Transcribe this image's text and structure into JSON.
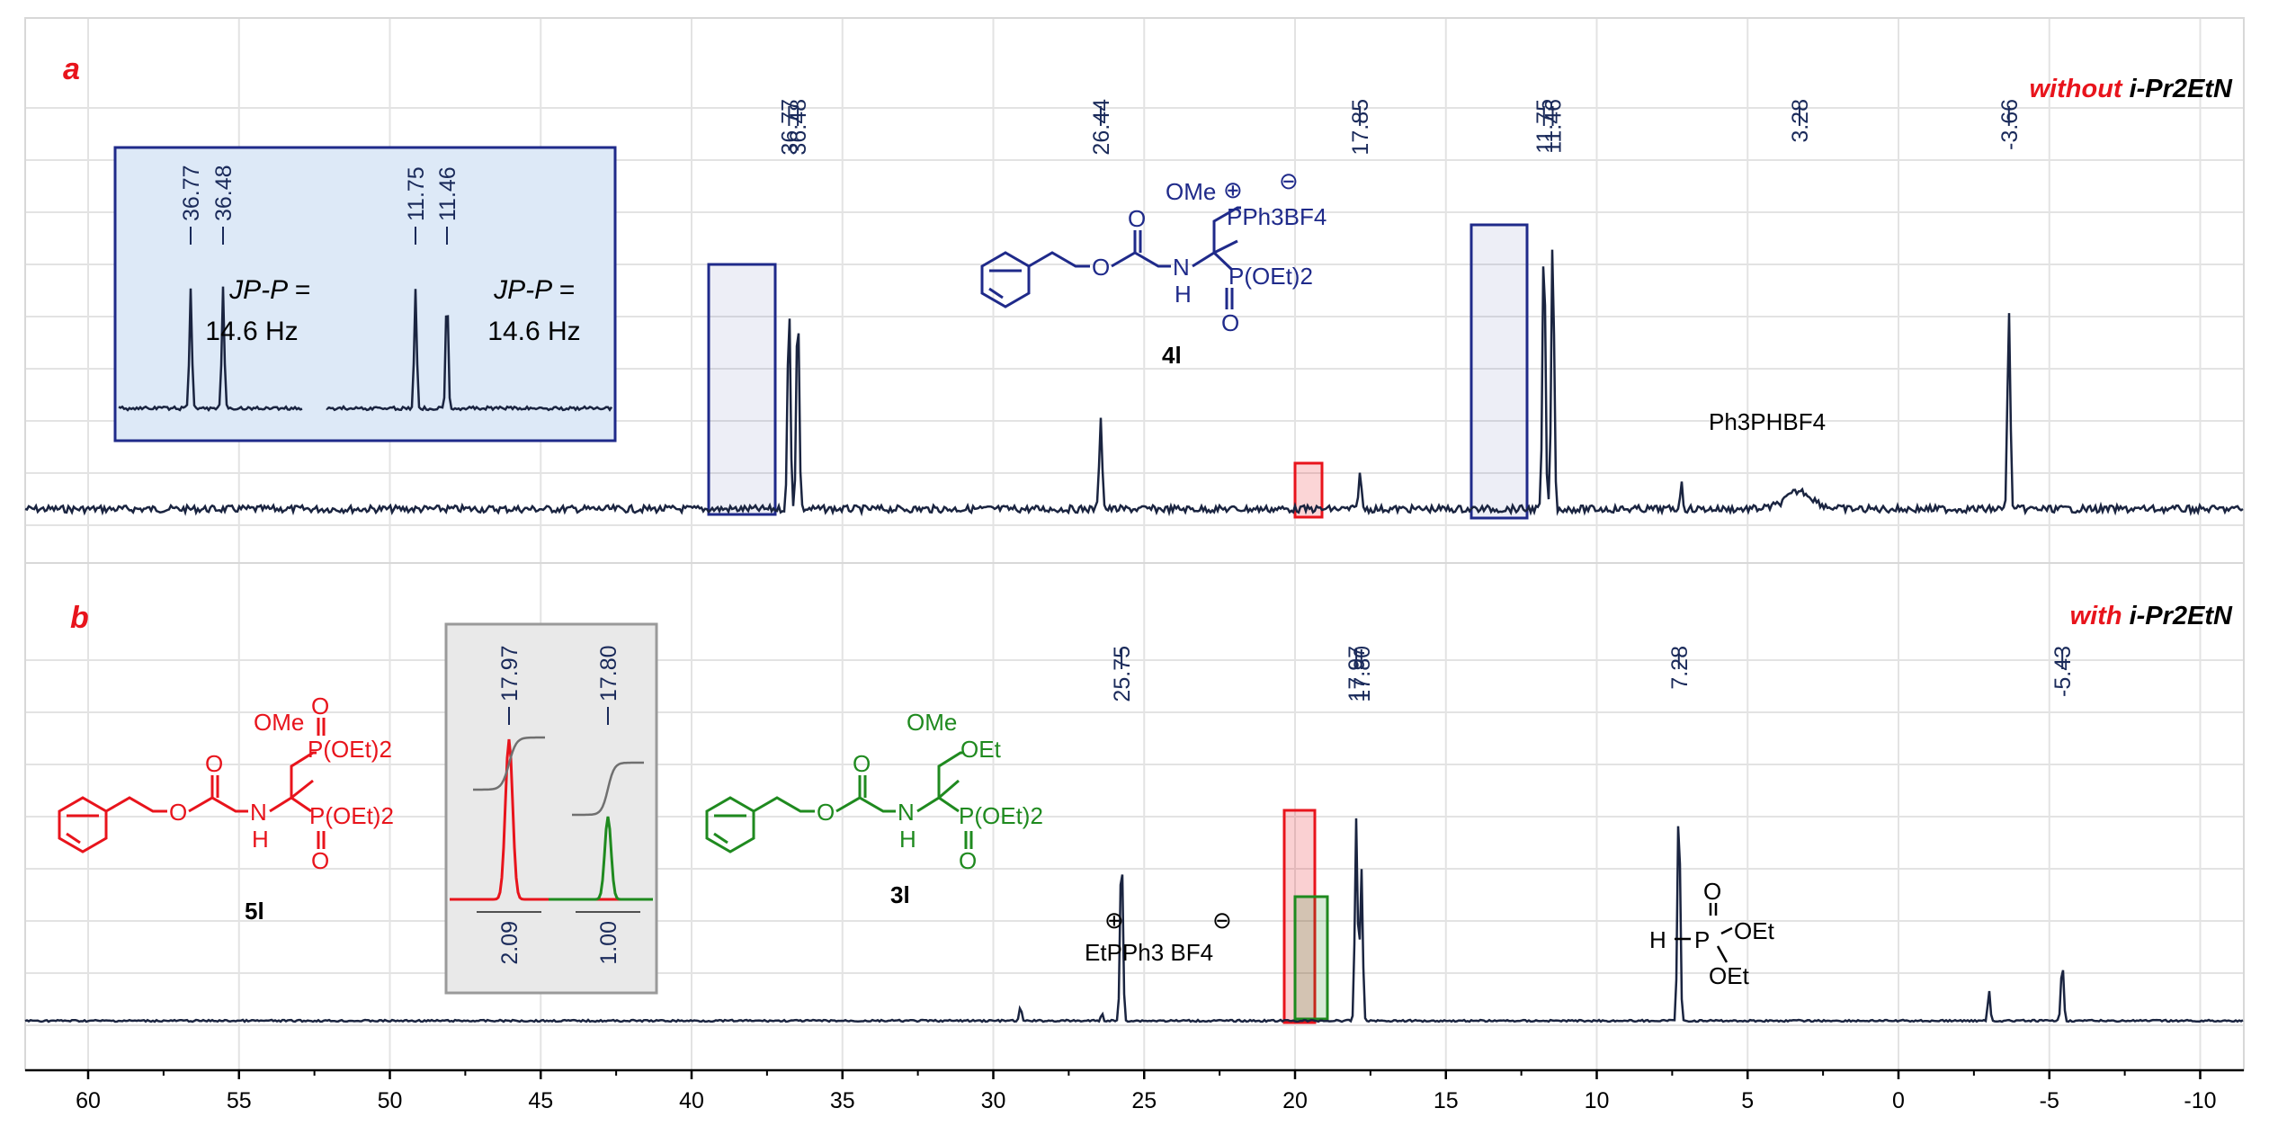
{
  "colors": {
    "spectrum": "#1a2440",
    "highlight_blue": "#1f2a8a",
    "highlight_red": "#e8141c",
    "highlight_green": "#1f8a1f",
    "inset_bg": "#dde9f7",
    "gray_box": "#e9e9e9",
    "grid": "#d8d8d8"
  },
  "chart_data": [
    {
      "type": "line",
      "panel": "a",
      "condition_prefix": "without",
      "condition_reagent": "i-Pr2EtN",
      "x_axis_reversed": true,
      "xlim": [
        61,
        -13
      ],
      "peaks_ppm": [
        36.77,
        36.48,
        26.44,
        17.85,
        11.75,
        11.46,
        3.28,
        -3.66
      ],
      "peak_labels": [
        "36.77",
        "36.48",
        "26.44",
        "17.85",
        "11.75",
        "11.46",
        "3.28",
        "-3.66"
      ],
      "inset": {
        "peak_labels": [
          "36.77",
          "36.48",
          "11.75",
          "11.46"
        ],
        "j_label": "JP-P =",
        "j_value_left": "14.6 Hz",
        "j_value_right": "14.6 Hz"
      },
      "compound_label": "4l",
      "compound_text": {
        "ome": "OMe",
        "pph3": "PPh3BF4",
        "poet": "P(OEt)2",
        "nh": "H",
        "n": "N",
        "o_carbonyl": "O",
        "o_ester": "O",
        "o_phosphoryl": "O"
      },
      "annotation": "Ph3PHBF4"
    },
    {
      "type": "line",
      "panel": "b",
      "condition_prefix": "with",
      "condition_reagent": "i-Pr2EtN",
      "x_axis_reversed": true,
      "xlim": [
        61,
        -13
      ],
      "peaks_ppm": [
        25.75,
        17.97,
        17.8,
        7.28,
        -5.43
      ],
      "peak_labels": [
        "25.75",
        "17.97",
        "17.80",
        "7.28",
        "-5.43"
      ],
      "inset": {
        "peak_labels": [
          "17.97",
          "17.80"
        ],
        "integrals": [
          "2.09",
          "1.00"
        ]
      },
      "compounds": [
        {
          "label": "5l",
          "ome": "OMe",
          "p1": "P(OEt)2",
          "p2": "P(OEt)2",
          "o1": "O",
          "o2": "O",
          "nh": "H",
          "n": "N",
          "o_carbonyl": "O",
          "o_ester": "O"
        },
        {
          "label": "3l",
          "ome": "OMe",
          "oet": "OEt",
          "p": "P(OEt)2",
          "o": "O",
          "nh": "H",
          "n": "N",
          "o_carbonyl": "O",
          "o_ester": "O"
        }
      ],
      "annotations": {
        "etpph3": "EtPPh3 BF4",
        "phosphite": {
          "h": "H",
          "p": "P",
          "o": "O",
          "oet1": "OEt",
          "oet2": "OEt"
        }
      }
    }
  ],
  "x_axis": {
    "ticks": [
      60,
      55,
      50,
      45,
      40,
      35,
      30,
      25,
      20,
      15,
      10,
      5,
      0,
      -5,
      -10
    ],
    "tick_labels": [
      "60",
      "55",
      "50",
      "45",
      "40",
      "35",
      "30",
      "25",
      "20",
      "15",
      "10",
      "5",
      "0",
      "-5",
      "-10"
    ]
  }
}
